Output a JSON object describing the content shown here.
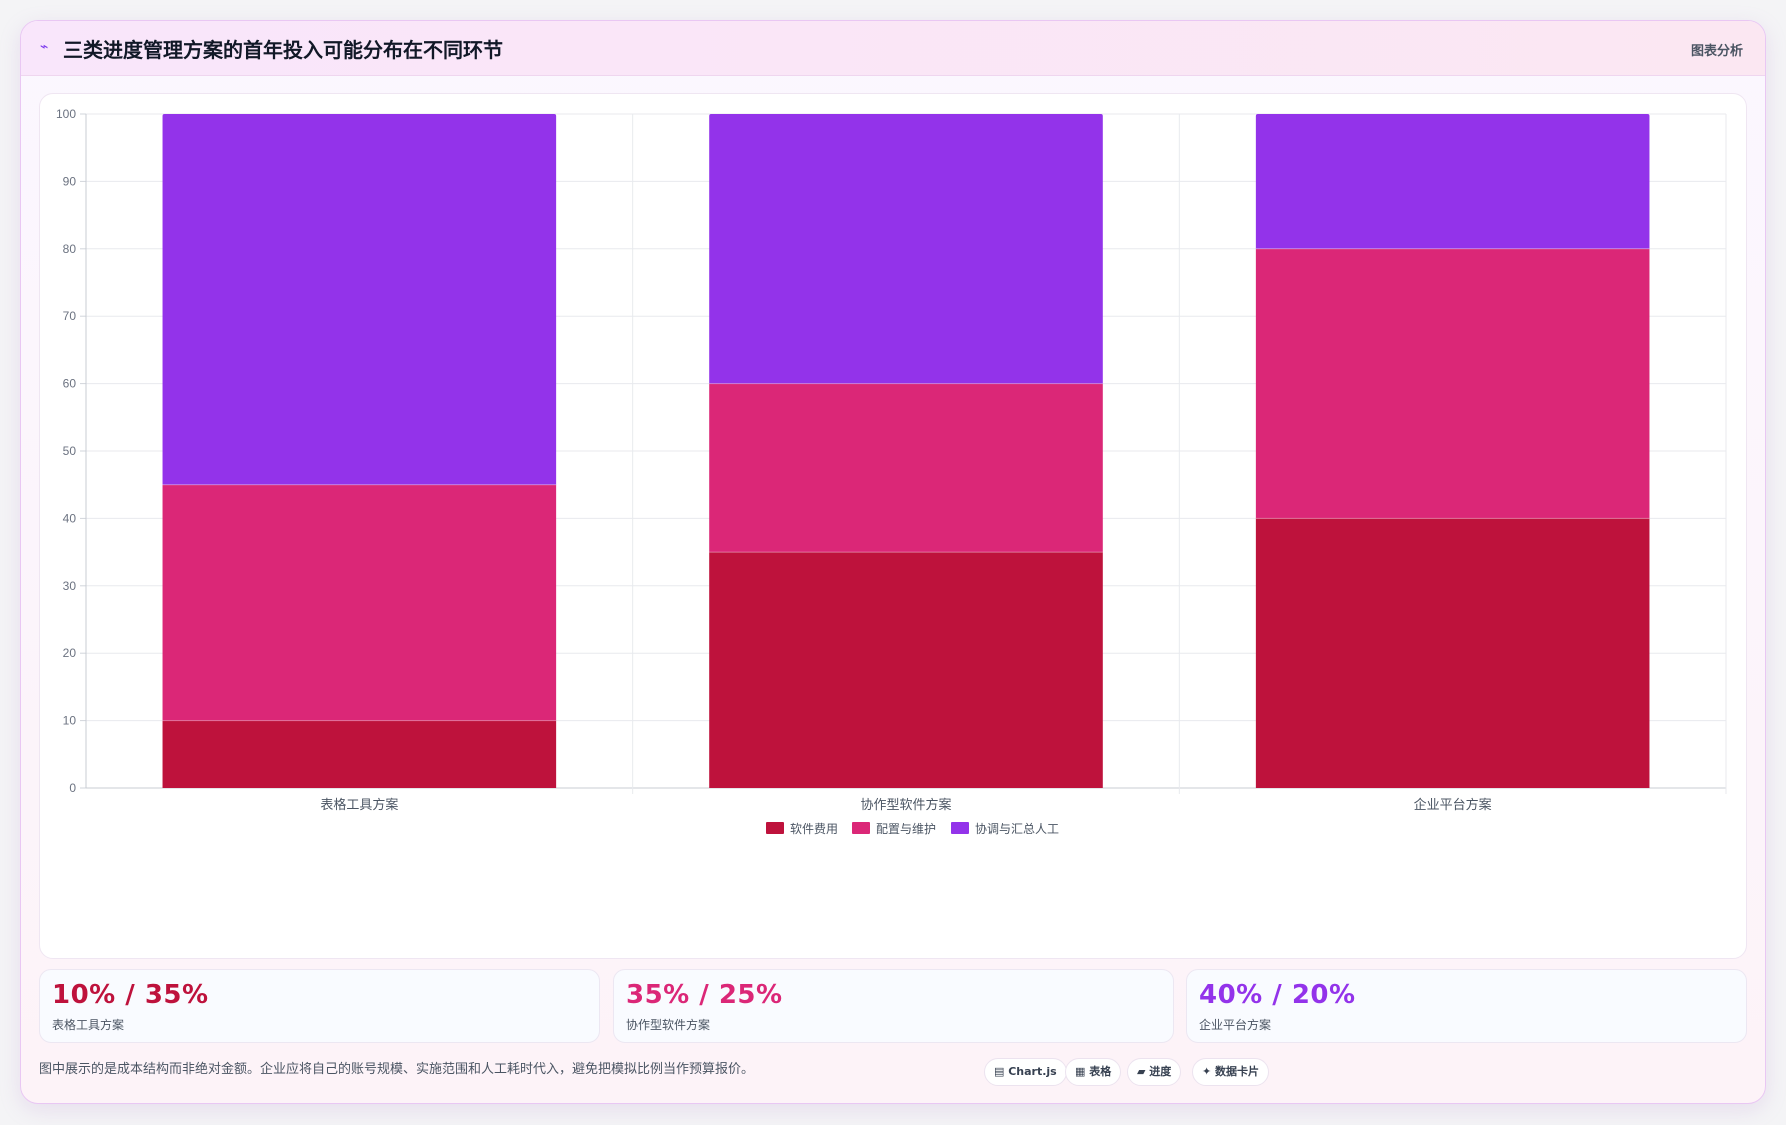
{
  "header": {
    "title": "三类进度管理方案的首年投入可能分布在不同环节",
    "badge": "图表分析"
  },
  "chart_data": {
    "type": "bar",
    "stacked": true,
    "categories": [
      "表格工具方案",
      "协作型软件方案",
      "企业平台方案"
    ],
    "series": [
      {
        "name": "软件费用",
        "values": [
          10,
          35,
          40
        ],
        "color": "#be123c"
      },
      {
        "name": "配置与维护",
        "values": [
          35,
          25,
          40
        ],
        "color": "#db2777"
      },
      {
        "name": "协调与汇总人工",
        "values": [
          55,
          40,
          20
        ],
        "color": "#9333ea"
      }
    ],
    "ylim": [
      0,
      100
    ],
    "yticks": [
      0,
      10,
      20,
      30,
      40,
      50,
      60,
      70,
      80,
      90,
      100
    ],
    "grid": true,
    "legend": "bottom-center"
  },
  "stats": [
    {
      "value": "10% / 35%",
      "label": "表格工具方案",
      "color": "#be123c"
    },
    {
      "value": "35% / 25%",
      "label": "协作型软件方案",
      "color": "#db2777"
    },
    {
      "value": "40% / 20%",
      "label": "企业平台方案",
      "color": "#9333ea"
    }
  ],
  "footnote": "图中展示的是成本结构而非绝对金额。企业应将自己的账号规模、实施范围和人工耗时代入，避免把模拟比例当作预算报价。",
  "chips": [
    "▤ Chart.js",
    "▦ 表格",
    "▰ 进度",
    "✦ 数据卡片"
  ]
}
